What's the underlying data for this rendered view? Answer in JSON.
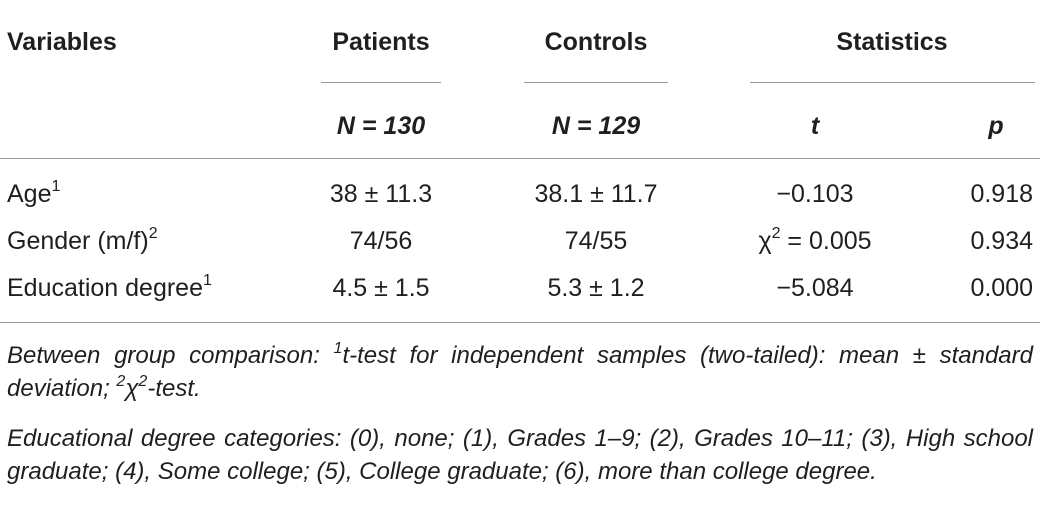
{
  "header": {
    "variables": "Variables",
    "patients": "Patients",
    "controls": "Controls",
    "statistics": "Statistics",
    "n_patients": "N = 130",
    "n_controls": "N = 129",
    "t": "t",
    "p": "p"
  },
  "rows": [
    {
      "label": "Age",
      "sup": "1",
      "patients": "38 ± 11.3",
      "controls": "38.1 ± 11.7",
      "t": "−0.103",
      "p": "0.918"
    },
    {
      "label": "Gender (m/f)",
      "sup": "2",
      "patients": "74/56",
      "controls": "74/55",
      "t_prefix": "χ",
      "t_sup": "2",
      "t": " = 0.005",
      "p": "0.934"
    },
    {
      "label": "Education degree",
      "sup": "1",
      "patients": "4.5 ± 1.5",
      "controls": "5.3 ± 1.2",
      "t": "−5.084",
      "p": "0.000"
    }
  ],
  "notes": {
    "note1_a": "Between group comparison: ",
    "note1_sup1": "1",
    "note1_b": "t-test for independent samples (two-tailed): mean ± standard deviation; ",
    "note1_sup2": "2",
    "note1_chi": "χ",
    "note1_sup3": "2",
    "note1_c": "-test.",
    "note2": "Educational degree categories: (0), none; (1), Grades 1–9; (2), Grades 10–11; (3), High school graduate; (4), Some college; (5), College graduate; (6), more than college degree."
  }
}
